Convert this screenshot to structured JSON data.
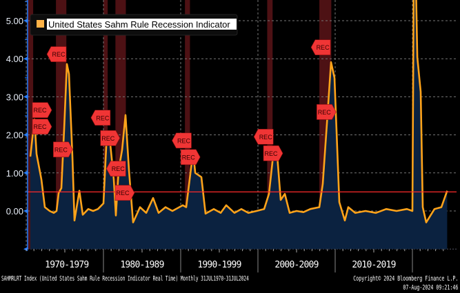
{
  "chart_data": {
    "type": "area",
    "title": "",
    "legend": {
      "label": "United States Sahm Rule Recession Indicator",
      "color": "#ffb347",
      "placement": "top-left"
    },
    "series_color": "#ffa31a",
    "fill_color": "#0b2240",
    "threshold": {
      "value": 0.5,
      "color": "#ff2a2a"
    },
    "ylim": [
      -1.0,
      5.5
    ],
    "xlim": [
      1970.0,
      2025.3
    ],
    "yticks": [
      {
        "value": 0,
        "label": "0.00"
      },
      {
        "value": 1,
        "label": "1.00"
      },
      {
        "value": 2,
        "label": "2.00"
      },
      {
        "value": 3,
        "label": "3.00"
      },
      {
        "value": 4,
        "label": "4.00"
      },
      {
        "value": 5,
        "label": "5.00"
      }
    ],
    "xcategories": [
      {
        "from": 1970,
        "to": 1980,
        "label": "1970-1979"
      },
      {
        "from": 1980,
        "to": 1990,
        "label": "1980-1989"
      },
      {
        "from": 1990,
        "to": 2000,
        "label": "1990-1999"
      },
      {
        "from": 2000,
        "to": 2010,
        "label": "2000-2009"
      },
      {
        "from": 2010,
        "to": 2020,
        "label": "2010-2019"
      }
    ],
    "x": [
      1970.54,
      1971.07,
      1971.34,
      1971.96,
      1972.41,
      1973.04,
      1973.57,
      1973.93,
      1974.2,
      1974.55,
      1974.91,
      1975.27,
      1975.54,
      1975.98,
      1976.25,
      1976.88,
      1977.32,
      1978.04,
      1978.66,
      1979.29,
      1980.0,
      1980.45,
      1980.89,
      1981.34,
      1981.61,
      1981.96,
      1982.41,
      1982.86,
      1983.3,
      1983.84,
      1984.73,
      1985.54,
      1986.43,
      1987.14,
      1988.04,
      1988.93,
      1989.82,
      1990.27,
      1990.71,
      1991.61,
      1991.88,
      1992.68,
      1993.21,
      1994.29,
      1995.18,
      1995.89,
      1996.96,
      1997.86,
      1998.75,
      1999.82,
      2000.8,
      2001.43,
      2002.05,
      2002.5,
      2002.95,
      2003.48,
      2004.11,
      2005.0,
      2005.89,
      2006.79,
      2007.95,
      2008.39,
      2009.0,
      2009.46,
      2009.91,
      2010.54,
      2011.25,
      2011.7,
      2012.59,
      2013.93,
      2015.27,
      2016.61,
      2017.95,
      2019.29,
      2020.0,
      2020.27,
      2020.45,
      2020.63,
      2021.07,
      2021.34,
      2021.79,
      2022.86,
      2023.75,
      2024.5
    ],
    "values": [
      1.43,
      2.41,
      1.5,
      0.83,
      0.1,
      0.0,
      -0.05,
      0.0,
      0.47,
      0.6,
      2.15,
      3.86,
      3.6,
      1.43,
      -0.25,
      0.53,
      -0.1,
      0.05,
      0.0,
      0.05,
      0.2,
      2.05,
      1.74,
      0.83,
      -0.12,
      1.07,
      1.6,
      2.52,
      1.07,
      -0.3,
      0.1,
      -0.05,
      0.34,
      -0.05,
      0.1,
      0.0,
      0.1,
      0.15,
      0.1,
      1.56,
      1.0,
      0.89,
      -0.07,
      0.05,
      -0.05,
      0.15,
      -0.05,
      0.05,
      -0.05,
      0.0,
      0.05,
      0.45,
      1.61,
      1.45,
      0.29,
      0.45,
      -0.05,
      0.0,
      -0.03,
      0.05,
      0.1,
      0.71,
      2.5,
      3.91,
      3.5,
      0.23,
      -0.25,
      0.1,
      -0.05,
      0.0,
      -0.05,
      0.05,
      0.0,
      0.05,
      0.0,
      9.5,
      6.0,
      4.04,
      3.13,
      0.1,
      -0.3,
      0.05,
      0.1,
      0.53
    ],
    "recessions": [
      [
        1969.95,
        1970.9
      ],
      [
        1973.85,
        1975.2
      ],
      [
        1980.0,
        1980.55
      ],
      [
        1981.55,
        1982.9
      ],
      [
        1990.55,
        1991.2
      ],
      [
        2001.2,
        2001.9
      ],
      [
        2007.95,
        2009.5
      ],
      [
        2020.1,
        2020.35
      ]
    ],
    "annotations": [
      {
        "text": "REC",
        "x": 1970.2,
        "y": 2.65,
        "dir": "right"
      },
      {
        "text": "REC",
        "x": 1970.7,
        "y": 2.65,
        "dir": "right"
      },
      {
        "text": "REC",
        "x": 1974.2,
        "y": 4.12,
        "dir": "left"
      },
      {
        "text": "REC",
        "x": 1974.5,
        "y": 2.05,
        "dir": "right"
      },
      {
        "text": "REC",
        "x": 1979.9,
        "y": 2.45,
        "dir": "left"
      },
      {
        "text": "REC",
        "x": 1980.6,
        "y": 2.35,
        "dir": "right"
      },
      {
        "text": "REC",
        "x": 1981.9,
        "y": 2.85,
        "dir": "left"
      },
      {
        "text": "REC",
        "x": 1982.5,
        "y": 2.65,
        "dir": "right"
      },
      {
        "text": "REC",
        "x": 1990.4,
        "y": 1.85,
        "dir": "left"
      },
      {
        "text": "REC",
        "x": 1991.0,
        "y": 1.85,
        "dir": "right"
      },
      {
        "text": "REC",
        "x": 2001.0,
        "y": 1.95,
        "dir": "left"
      },
      {
        "text": "REC",
        "x": 2001.7,
        "y": 1.95,
        "dir": "right"
      },
      {
        "text": "REC",
        "x": 2008.4,
        "y": 4.3,
        "dir": "left"
      },
      {
        "text": "REC",
        "x": 2008.6,
        "y": 2.6,
        "dir": "right"
      }
    ]
  },
  "footer": {
    "source": "SAHMRLRT Index (United States Sahm Rule Recession Indicator Real Time)  Monthly 31JUL1970-31JUL2024",
    "copyright": "Copyright© 2024 Bloomberg Finance L.P.",
    "timestamp": "07-Aug-2024 09:21:46"
  }
}
